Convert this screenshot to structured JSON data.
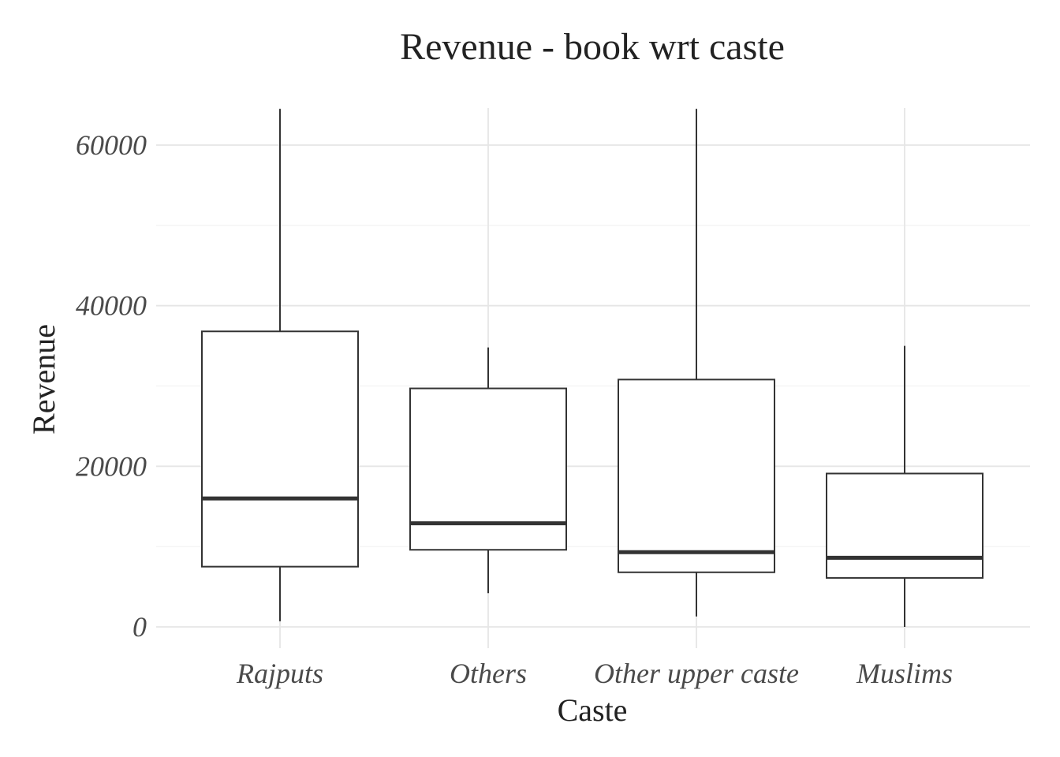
{
  "chart_data": {
    "type": "boxplot",
    "title": "Revenue - book wrt caste",
    "xlabel": "Caste",
    "ylabel": "Revenue",
    "ylim": [
      -2000,
      64500
    ],
    "yticks": [
      "0",
      "20000",
      "40000",
      "60000"
    ],
    "grid": true,
    "categories": [
      "Rajputs",
      "Others",
      "Other upper caste",
      "Muslims"
    ],
    "boxes": [
      {
        "category": "Rajputs",
        "whisker_low": 700,
        "q1": 7500,
        "median": 16000,
        "q3": 36800,
        "whisker_high": 64500
      },
      {
        "category": "Others",
        "whisker_low": 4200,
        "q1": 9600,
        "median": 12900,
        "q3": 29700,
        "whisker_high": 34800
      },
      {
        "category": "Other upper caste",
        "whisker_low": 1300,
        "q1": 6800,
        "median": 9300,
        "q3": 30800,
        "whisker_high": 64500
      },
      {
        "category": "Muslims",
        "whisker_low": 0,
        "q1": 6100,
        "median": 8600,
        "q3": 19100,
        "whisker_high": 35000
      }
    ]
  }
}
